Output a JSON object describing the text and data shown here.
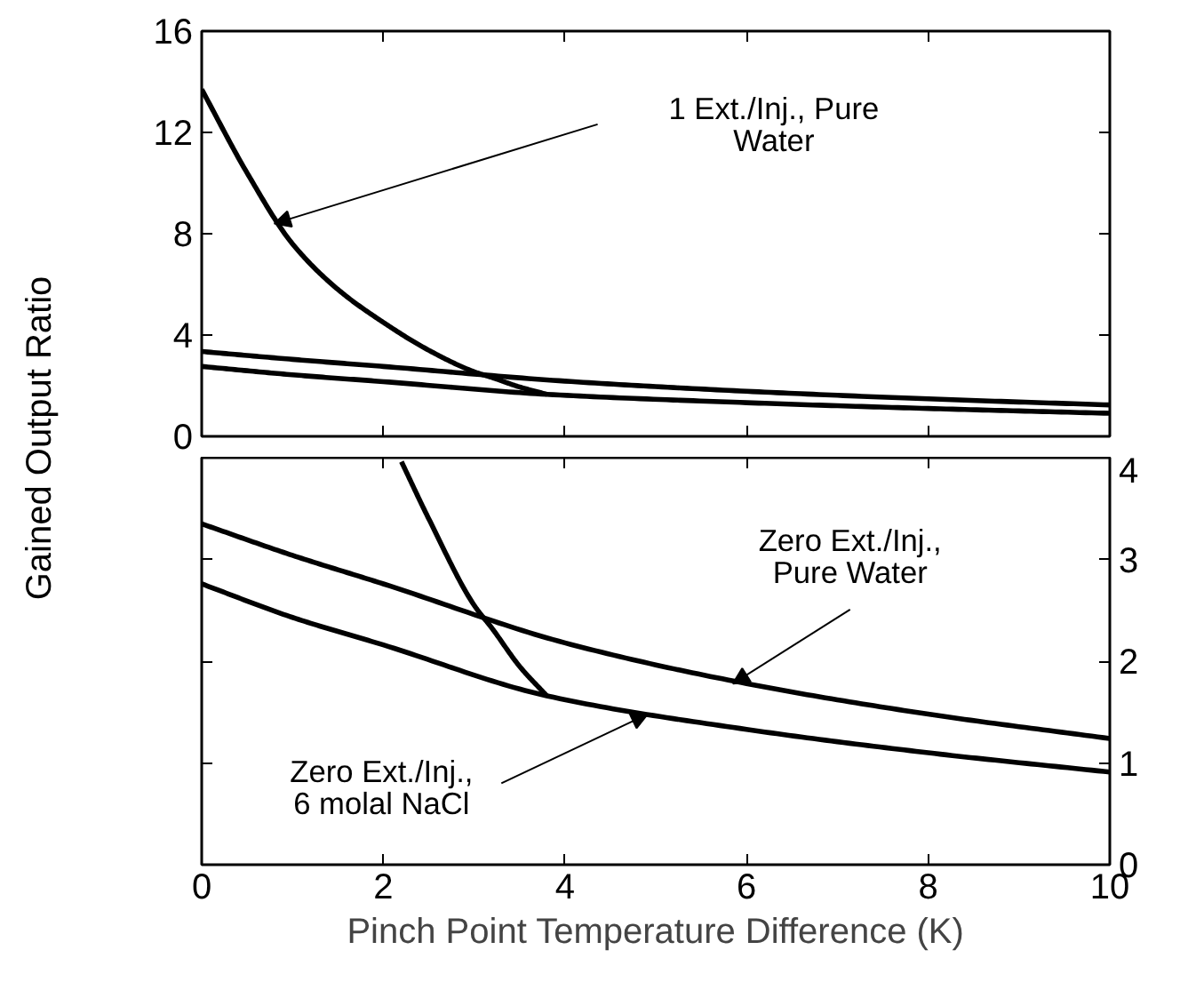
{
  "chart_data": [
    {
      "type": "line",
      "ylabel": "Gained Output Ratio",
      "xlim": [
        0,
        10
      ],
      "xticks": [
        0,
        2,
        4,
        6,
        8,
        10
      ],
      "ylim": [
        0,
        16
      ],
      "yticks": [
        0,
        4,
        8,
        12,
        16
      ],
      "tick_labels": "y",
      "grid": false,
      "series": [
        {
          "color": "#000000",
          "x": [
            0,
            0.5,
            1,
            1.5,
            2,
            2.5,
            3,
            3.2,
            3.5,
            3.8
          ],
          "values": [
            13.7,
            10.4,
            7.6,
            5.8,
            4.5,
            3.4,
            2.55,
            2.32,
            1.95,
            1.66
          ]
        },
        {
          "color": "#000000",
          "x": [
            0,
            1,
            2,
            4,
            6,
            8,
            10
          ],
          "values": [
            3.35,
            3.04,
            2.76,
            2.18,
            1.78,
            1.48,
            1.24
          ]
        },
        {
          "color": "#000000",
          "x": [
            0,
            1,
            2,
            3.8,
            6,
            8,
            10
          ],
          "values": [
            2.76,
            2.43,
            2.16,
            1.66,
            1.33,
            1.1,
            0.91
          ]
        }
      ],
      "annotations": [
        "1 Ext./Inj., Pure\nWater"
      ]
    },
    {
      "type": "line",
      "xlabel": "Pinch Point Temperature Difference (K)",
      "xlim": [
        0,
        10
      ],
      "xticks": [
        0,
        2,
        4,
        6,
        8,
        10
      ],
      "ylim": [
        0,
        4
      ],
      "yticks": [
        0,
        1,
        2,
        3,
        4
      ],
      "grid": false,
      "series": [
        {
          "color": "#000000",
          "x": [
            2.2,
            2.5,
            3,
            3.2,
            3.5,
            3.8
          ],
          "values": [
            3.96,
            3.4,
            2.55,
            2.32,
            1.95,
            1.66
          ]
        },
        {
          "color": "#000000",
          "x": [
            0,
            1,
            2,
            4,
            6,
            8,
            10
          ],
          "values": [
            3.35,
            3.04,
            2.76,
            2.18,
            1.78,
            1.48,
            1.24
          ]
        },
        {
          "color": "#000000",
          "x": [
            0,
            1,
            2,
            3.8,
            6,
            8,
            10
          ],
          "values": [
            2.76,
            2.43,
            2.16,
            1.66,
            1.33,
            1.1,
            0.91
          ]
        }
      ],
      "annotations": [
        {
          "text": "Zero Ext./Inj.,\nPure Water",
          "x": 5.85,
          "y": 1.78
        },
        {
          "text": "Zero Ext./Inj.,\n6 molal NaCl",
          "x": 4.91,
          "y": 1.48
        }
      ]
    }
  ]
}
